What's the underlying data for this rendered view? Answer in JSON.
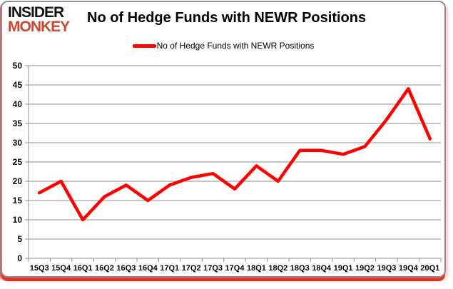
{
  "brand": {
    "line1": "INSIDER",
    "line2": "MONKEY"
  },
  "header": {
    "title": "No of Hedge Funds with NEWR Positions"
  },
  "legend": {
    "label": "No of Hedge Funds with NEWR Positions"
  },
  "colors": {
    "series": "#fe0000",
    "grid": "#8e8e8e",
    "axis_text": "#000000",
    "logo_accent": "#c8492e"
  },
  "chart_data": {
    "type": "line",
    "title": "No of Hedge Funds with NEWR Positions",
    "categories": [
      "15Q3",
      "15Q4",
      "16Q1",
      "16Q2",
      "16Q3",
      "16Q4",
      "17Q1",
      "17Q2",
      "17Q3",
      "17Q4",
      "18Q1",
      "18Q2",
      "18Q3",
      "18Q4",
      "19Q1",
      "19Q2",
      "19Q3",
      "19Q4",
      "20Q1"
    ],
    "series": [
      {
        "name": "No of Hedge Funds with NEWR Positions",
        "values": [
          17,
          20,
          10,
          16,
          19,
          15,
          19,
          21,
          22,
          18,
          24,
          20,
          28,
          28,
          27,
          29,
          36,
          44,
          31
        ]
      }
    ],
    "xlabel": "",
    "ylabel": "",
    "ylim": [
      0,
      50
    ],
    "ytick_step": 5,
    "grid": true,
    "legend_position": "top-center"
  }
}
